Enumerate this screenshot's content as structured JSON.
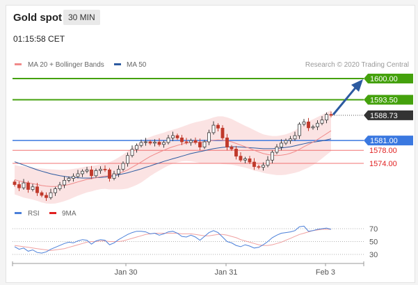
{
  "header": {
    "title": "Gold spot",
    "timeframe": "30 MIN",
    "timestamp": "01:15:58 CET"
  },
  "legend": {
    "items": [
      {
        "label": "MA 20 + Bollinger Bands",
        "color": "#f08a8a"
      },
      {
        "label": "MA 50",
        "color": "#2c5aa0"
      }
    ],
    "credit": "Research © 2020 Trading Central"
  },
  "rsi_legend": {
    "items": [
      {
        "label": "RSI",
        "color": "#4a7fd9"
      },
      {
        "label": "9MA",
        "color": "#e02020"
      }
    ]
  },
  "colors": {
    "green_line": "#44a10c",
    "blue_line": "#3a78e0",
    "red_line": "#f07070",
    "price_tag": "#333333",
    "arrow": "#2c5aa0",
    "candle": "#3a3a3a",
    "band": "#fbe0e0"
  },
  "chart_data": {
    "type": "candlestick",
    "ylim": [
      1560,
      1605
    ],
    "x_ticks": [
      "Jan 30",
      "Jan 31",
      "Feb 3"
    ],
    "levels": [
      {
        "value": 1600.0,
        "label": "1600.00",
        "kind": "resistance"
      },
      {
        "value": 1593.5,
        "label": "1593.50",
        "kind": "resistance"
      },
      {
        "value": 1588.73,
        "label": "1588.73",
        "kind": "last"
      },
      {
        "value": 1581.0,
        "label": "1581.00",
        "kind": "pivot"
      },
      {
        "value": 1578.0,
        "label": "1578.00",
        "kind": "support"
      },
      {
        "value": 1574.0,
        "label": "1574.00",
        "kind": "support"
      }
    ],
    "price_close": [
      1567.5,
      1566.5,
      1568.0,
      1566.0,
      1566.8,
      1565.0,
      1564.2,
      1563.5,
      1565.0,
      1566.2,
      1567.4,
      1568.8,
      1569.4,
      1570.0,
      1570.8,
      1571.6,
      1572.0,
      1570.2,
      1571.8,
      1572.2,
      1572.0,
      1569.4,
      1570.8,
      1572.2,
      1574.0,
      1576.4,
      1578.3,
      1579.5,
      1580.4,
      1580.6,
      1580.2,
      1580.5,
      1579.8,
      1580.4,
      1581.8,
      1582.5,
      1581.8,
      1580.6,
      1580.4,
      1581.0,
      1580.4,
      1579.0,
      1580.6,
      1583.4,
      1585.7,
      1584.8,
      1581.8,
      1579.0,
      1578.4,
      1576.2,
      1575.0,
      1575.4,
      1574.4,
      1573.0,
      1572.8,
      1573.4,
      1575.0,
      1577.4,
      1579.0,
      1580.2,
      1581.0,
      1581.5,
      1582.5,
      1586.0,
      1586.7,
      1584.9,
      1585.2,
      1586.3,
      1587.3,
      1589.0,
      1588.73
    ],
    "ma20": [
      1569.0,
      1568.6,
      1568.3,
      1568.0,
      1567.8,
      1567.5,
      1567.2,
      1567.0,
      1566.9,
      1566.9,
      1567.0,
      1567.2,
      1567.5,
      1567.9,
      1568.3,
      1568.7,
      1569.1,
      1569.3,
      1569.6,
      1569.9,
      1570.1,
      1570.2,
      1570.5,
      1570.9,
      1571.4,
      1572.0,
      1572.8,
      1573.6,
      1574.4,
      1575.3,
      1576.1,
      1576.8,
      1577.4,
      1578.0,
      1578.6,
      1579.1,
      1579.5,
      1579.9,
      1580.2,
      1580.4,
      1580.5,
      1580.5,
      1580.6,
      1580.8,
      1581.1,
      1581.2,
      1581.1,
      1580.9,
      1580.6,
      1580.1,
      1579.6,
      1579.1,
      1578.6,
      1578.0,
      1577.5,
      1577.0,
      1576.7,
      1576.5,
      1576.4,
      1576.5,
      1576.7,
      1577.1,
      1577.6,
      1578.3,
      1579.1,
      1579.8,
      1580.5,
      1581.3,
      1582.2,
      1583.1,
      1584.0
    ],
    "ma50": [
      1574.5,
      1574.0,
      1573.5,
      1573.0,
      1572.5,
      1572.0,
      1571.6,
      1571.2,
      1570.8,
      1570.5,
      1570.2,
      1570.0,
      1569.8,
      1569.7,
      1569.6,
      1569.5,
      1569.5,
      1569.5,
      1569.6,
      1569.7,
      1569.8,
      1570.0,
      1570.2,
      1570.5,
      1570.8,
      1571.1,
      1571.5,
      1571.9,
      1572.3,
      1572.8,
      1573.2,
      1573.7,
      1574.1,
      1574.6,
      1575.0,
      1575.4,
      1575.8,
      1576.2,
      1576.6,
      1577.0,
      1577.3,
      1577.6,
      1577.9,
      1578.2,
      1578.5,
      1578.7,
      1578.9,
      1579.0,
      1579.1,
      1579.1,
      1579.0,
      1578.9,
      1578.8,
      1578.7,
      1578.6,
      1578.5,
      1578.5,
      1578.5,
      1578.6,
      1578.7,
      1578.9,
      1579.1,
      1579.4,
      1579.7,
      1580.0,
      1580.3,
      1580.5,
      1580.7,
      1580.9,
      1581.2,
      1581.5
    ],
    "band_width": [
      4.5,
      4.6,
      4.8,
      4.8,
      4.9,
      5.0,
      5.2,
      5.3,
      5.3,
      5.2,
      5.0,
      4.8,
      4.6,
      4.4,
      4.2,
      4.1,
      4.0,
      3.9,
      3.8,
      3.8,
      3.9,
      4.2,
      4.5,
      4.9,
      5.3,
      5.7,
      6.0,
      6.2,
      6.3,
      6.2,
      6.0,
      5.8,
      5.6,
      5.4,
      5.3,
      5.2,
      5.2,
      5.3,
      5.5,
      5.8,
      6.1,
      6.4,
      6.6,
      6.8,
      7.0,
      7.2,
      7.3,
      7.2,
      7.0,
      6.8,
      6.6,
      6.4,
      6.3,
      6.2,
      6.0,
      5.9,
      5.9,
      5.9,
      6.0,
      6.1,
      6.2,
      6.3,
      6.5,
      6.8,
      7.0,
      7.1,
      7.0,
      6.9,
      6.7,
      6.5,
      6.3
    ],
    "rsi": {
      "levels": [
        70,
        50,
        30
      ],
      "ylim": [
        20,
        80
      ],
      "rsi": [
        42,
        38,
        40,
        35,
        37,
        33,
        32,
        34,
        38,
        41,
        44,
        47,
        49,
        48,
        51,
        53,
        52,
        46,
        51,
        53,
        52,
        45,
        48,
        53,
        57,
        61,
        64,
        66,
        66,
        65,
        62,
        63,
        60,
        62,
        65,
        66,
        63,
        58,
        57,
        60,
        57,
        52,
        58,
        64,
        67,
        64,
        57,
        50,
        48,
        44,
        42,
        45,
        43,
        40,
        41,
        45,
        50,
        56,
        60,
        63,
        64,
        65,
        67,
        73,
        74,
        66,
        67,
        69,
        70,
        71,
        69
      ],
      "ma9": [
        44,
        43,
        42,
        41,
        40,
        39,
        38,
        37,
        36,
        37,
        38,
        39,
        41,
        43,
        45,
        47,
        49,
        50,
        50,
        51,
        51,
        50,
        50,
        50,
        51,
        53,
        55,
        57,
        59,
        61,
        62,
        63,
        63,
        63,
        63,
        63,
        63,
        62,
        62,
        62,
        61,
        60,
        59,
        59,
        60,
        61,
        61,
        60,
        58,
        56,
        53,
        51,
        49,
        47,
        45,
        44,
        44,
        45,
        47,
        49,
        52,
        55,
        58,
        61,
        63,
        65,
        67,
        68,
        69,
        69,
        69
      ]
    }
  }
}
